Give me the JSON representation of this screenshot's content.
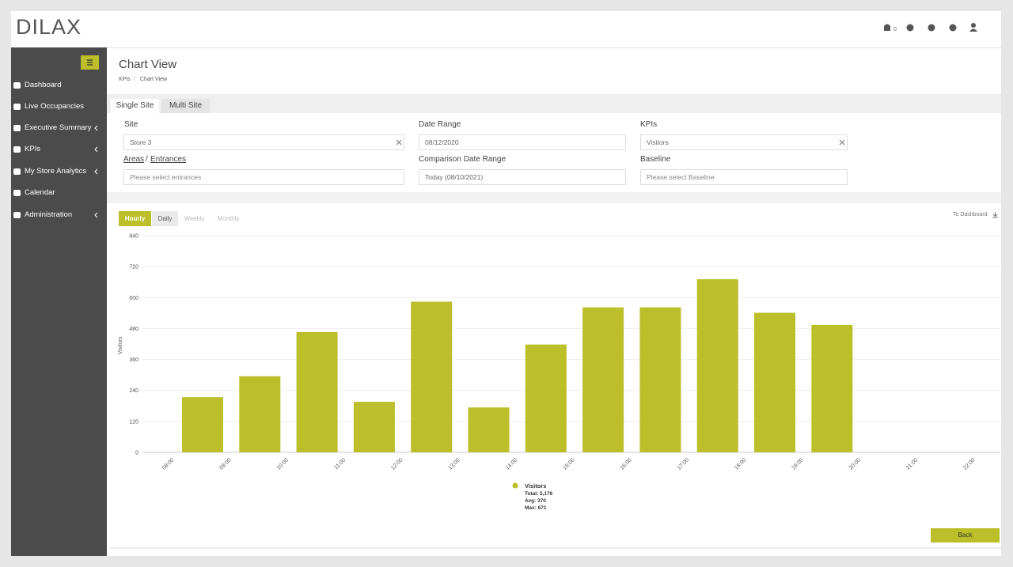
{
  "header": {
    "logo": "DILAX",
    "notification_count": "0"
  },
  "sidebar": {
    "items": [
      "Dashboard",
      "Live Occupancies",
      "Executive Summary",
      "KPIs",
      "My Store Analytics",
      "Calendar",
      "Administration"
    ]
  },
  "page": {
    "title": "Chart View",
    "breadcrumb": [
      "KPIs",
      "Chart View"
    ]
  },
  "tabs": [
    "Single Site",
    "Multi Site"
  ],
  "form": {
    "site": {
      "label": "Site",
      "value": "Store 3"
    },
    "date_range": {
      "label": "Date Range",
      "value": "08/12/2020"
    },
    "kpis": {
      "label": "KPIs",
      "value": "Visitors"
    },
    "areas": {
      "label": "Areas",
      "label2": "Entrances",
      "placeholder": "Please select entrances"
    },
    "comparison": {
      "label": "Comparison Date Range",
      "value": "Today (08/10/2021)"
    },
    "baseline": {
      "label": "Baseline",
      "placeholder": "Please select Baseline"
    }
  },
  "periods": [
    "Hourly",
    "Daily",
    "Weekly",
    "Monthly"
  ],
  "to_dashboard": "To Dashboard",
  "chart_data": {
    "type": "bar",
    "y_label": "Visitors",
    "categories": [
      "08:00",
      "09:00",
      "10:00",
      "11:00",
      "12:00",
      "13:00",
      "14:00",
      "15:00",
      "16:00",
      "17:00",
      "18:00",
      "19:00",
      "20:00",
      "21:00",
      "22:00"
    ],
    "series": [
      {
        "name": "Visitors",
        "color": "#bcbf2a",
        "values": [
          214,
          295,
          466,
          196,
          584,
          174,
          418,
          562,
          562,
          671,
          541,
          494,
          0,
          0,
          null
        ]
      }
    ],
    "ylim": [
      0,
      840
    ],
    "yticks": [
      0,
      120,
      240,
      360,
      480,
      600,
      720,
      840
    ],
    "grid": true,
    "legend_stats": [
      "Total: 5,176",
      "Avg: 370",
      "Max: 671"
    ]
  },
  "back_button": "Back"
}
